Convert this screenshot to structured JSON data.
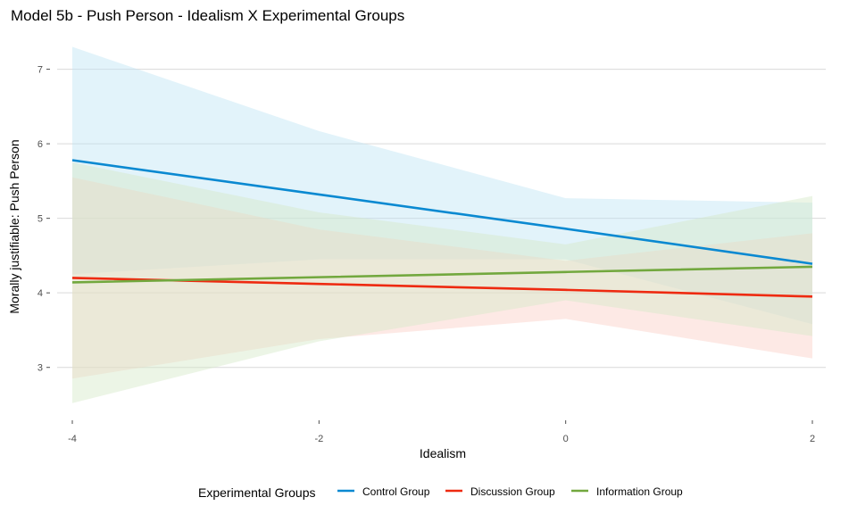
{
  "chart_data": {
    "type": "line",
    "title": "Model 5b - Push Person - Idealism X Experimental Groups",
    "xlabel": "Idealism",
    "ylabel": "Morally justifiable: Push Person",
    "xlim": [
      -4,
      2
    ],
    "ylim": [
      2.35,
      7.45
    ],
    "x_ticks": [
      -4,
      -2,
      0,
      2
    ],
    "y_ticks": [
      3,
      4,
      5,
      6,
      7
    ],
    "grid": true,
    "legend_position": "bottom",
    "legend_title": "Experimental Groups",
    "x": [
      -4,
      -2,
      0,
      2
    ],
    "series": [
      {
        "name": "Control Group",
        "color": "#0a89d1",
        "band_color": "#bfe4f4",
        "values": [
          5.78,
          5.32,
          4.86,
          4.39
        ],
        "lower": [
          4.25,
          4.45,
          4.45,
          3.58
        ],
        "upper": [
          7.3,
          6.17,
          5.27,
          5.21
        ]
      },
      {
        "name": "Discussion Group",
        "color": "#ee2a10",
        "band_color": "#fbcfc5",
        "values": [
          4.2,
          4.12,
          4.04,
          3.95
        ],
        "lower": [
          2.85,
          3.38,
          3.65,
          3.12
        ],
        "upper": [
          5.55,
          4.85,
          4.43,
          4.8
        ]
      },
      {
        "name": "Information Group",
        "color": "#72a83e",
        "band_color": "#d4e8c8",
        "values": [
          4.14,
          4.21,
          4.28,
          4.35
        ],
        "lower": [
          2.52,
          3.35,
          3.9,
          3.42
        ],
        "upper": [
          5.75,
          5.08,
          4.65,
          5.3
        ]
      }
    ]
  }
}
